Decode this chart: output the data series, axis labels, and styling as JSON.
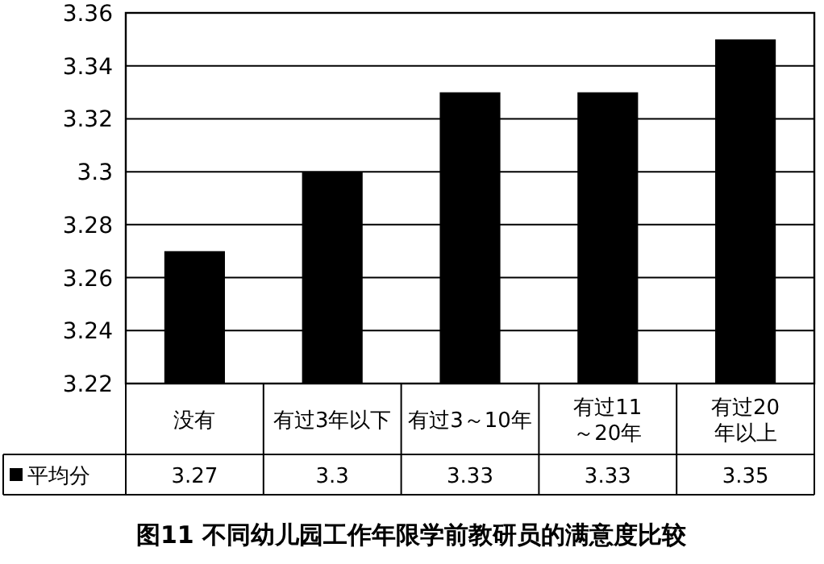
{
  "chart_data": {
    "type": "bar",
    "title": "图11  不同幼儿园工作年限学前教研员的满意度比较",
    "categories": [
      "没有",
      "有过3年以下",
      "有过3～10年",
      "有过11～20年",
      "有过20年以上"
    ],
    "series": [
      {
        "name": "平均分",
        "color": "#000000",
        "values": [
          3.27,
          3.3,
          3.33,
          3.33,
          3.35
        ]
      }
    ],
    "ylim": [
      3.22,
      3.36
    ],
    "yticks": [
      3.22,
      3.24,
      3.26,
      3.28,
      {
        "value": 3.3,
        "label": "3.3"
      },
      3.32,
      3.34,
      3.36
    ],
    "grid": "y",
    "data_labels": true,
    "legend": "bottom"
  }
}
